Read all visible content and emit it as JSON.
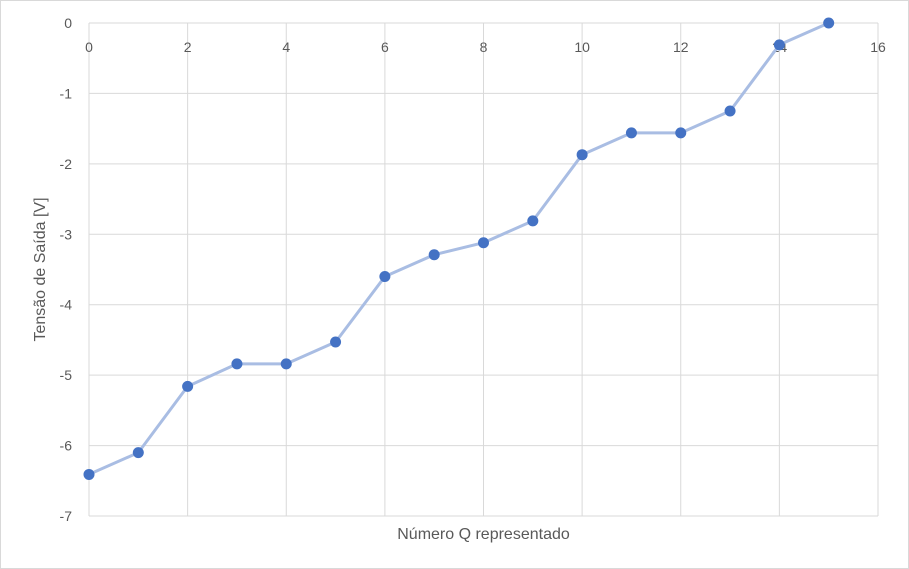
{
  "chart_data": {
    "type": "scatter",
    "title": "",
    "xlabel": "Número Q representado",
    "ylabel": "Tensão de Saída [V]",
    "xlim": [
      0,
      16
    ],
    "ylim": [
      -7,
      0
    ],
    "x_ticks": [
      "0",
      "2",
      "4",
      "6",
      "8",
      "10",
      "12",
      "14",
      "16"
    ],
    "y_ticks": [
      "0",
      "-1",
      "-2",
      "-3",
      "-4",
      "-5",
      "-6",
      "-7"
    ],
    "grid": true,
    "legend": "none",
    "series": [
      {
        "x": [
          0,
          1,
          2,
          3,
          4,
          5,
          6,
          7,
          8,
          9,
          10,
          11,
          12,
          13,
          14,
          15
        ],
        "y": [
          -6.41,
          -6.1,
          -5.16,
          -4.84,
          -4.84,
          -4.53,
          -3.6,
          -3.29,
          -3.12,
          -2.81,
          -1.87,
          -1.56,
          -1.56,
          -1.25,
          -0.31,
          0.0
        ],
        "marker_color": "#4472c4",
        "line_color": "#a9bde3"
      }
    ]
  }
}
